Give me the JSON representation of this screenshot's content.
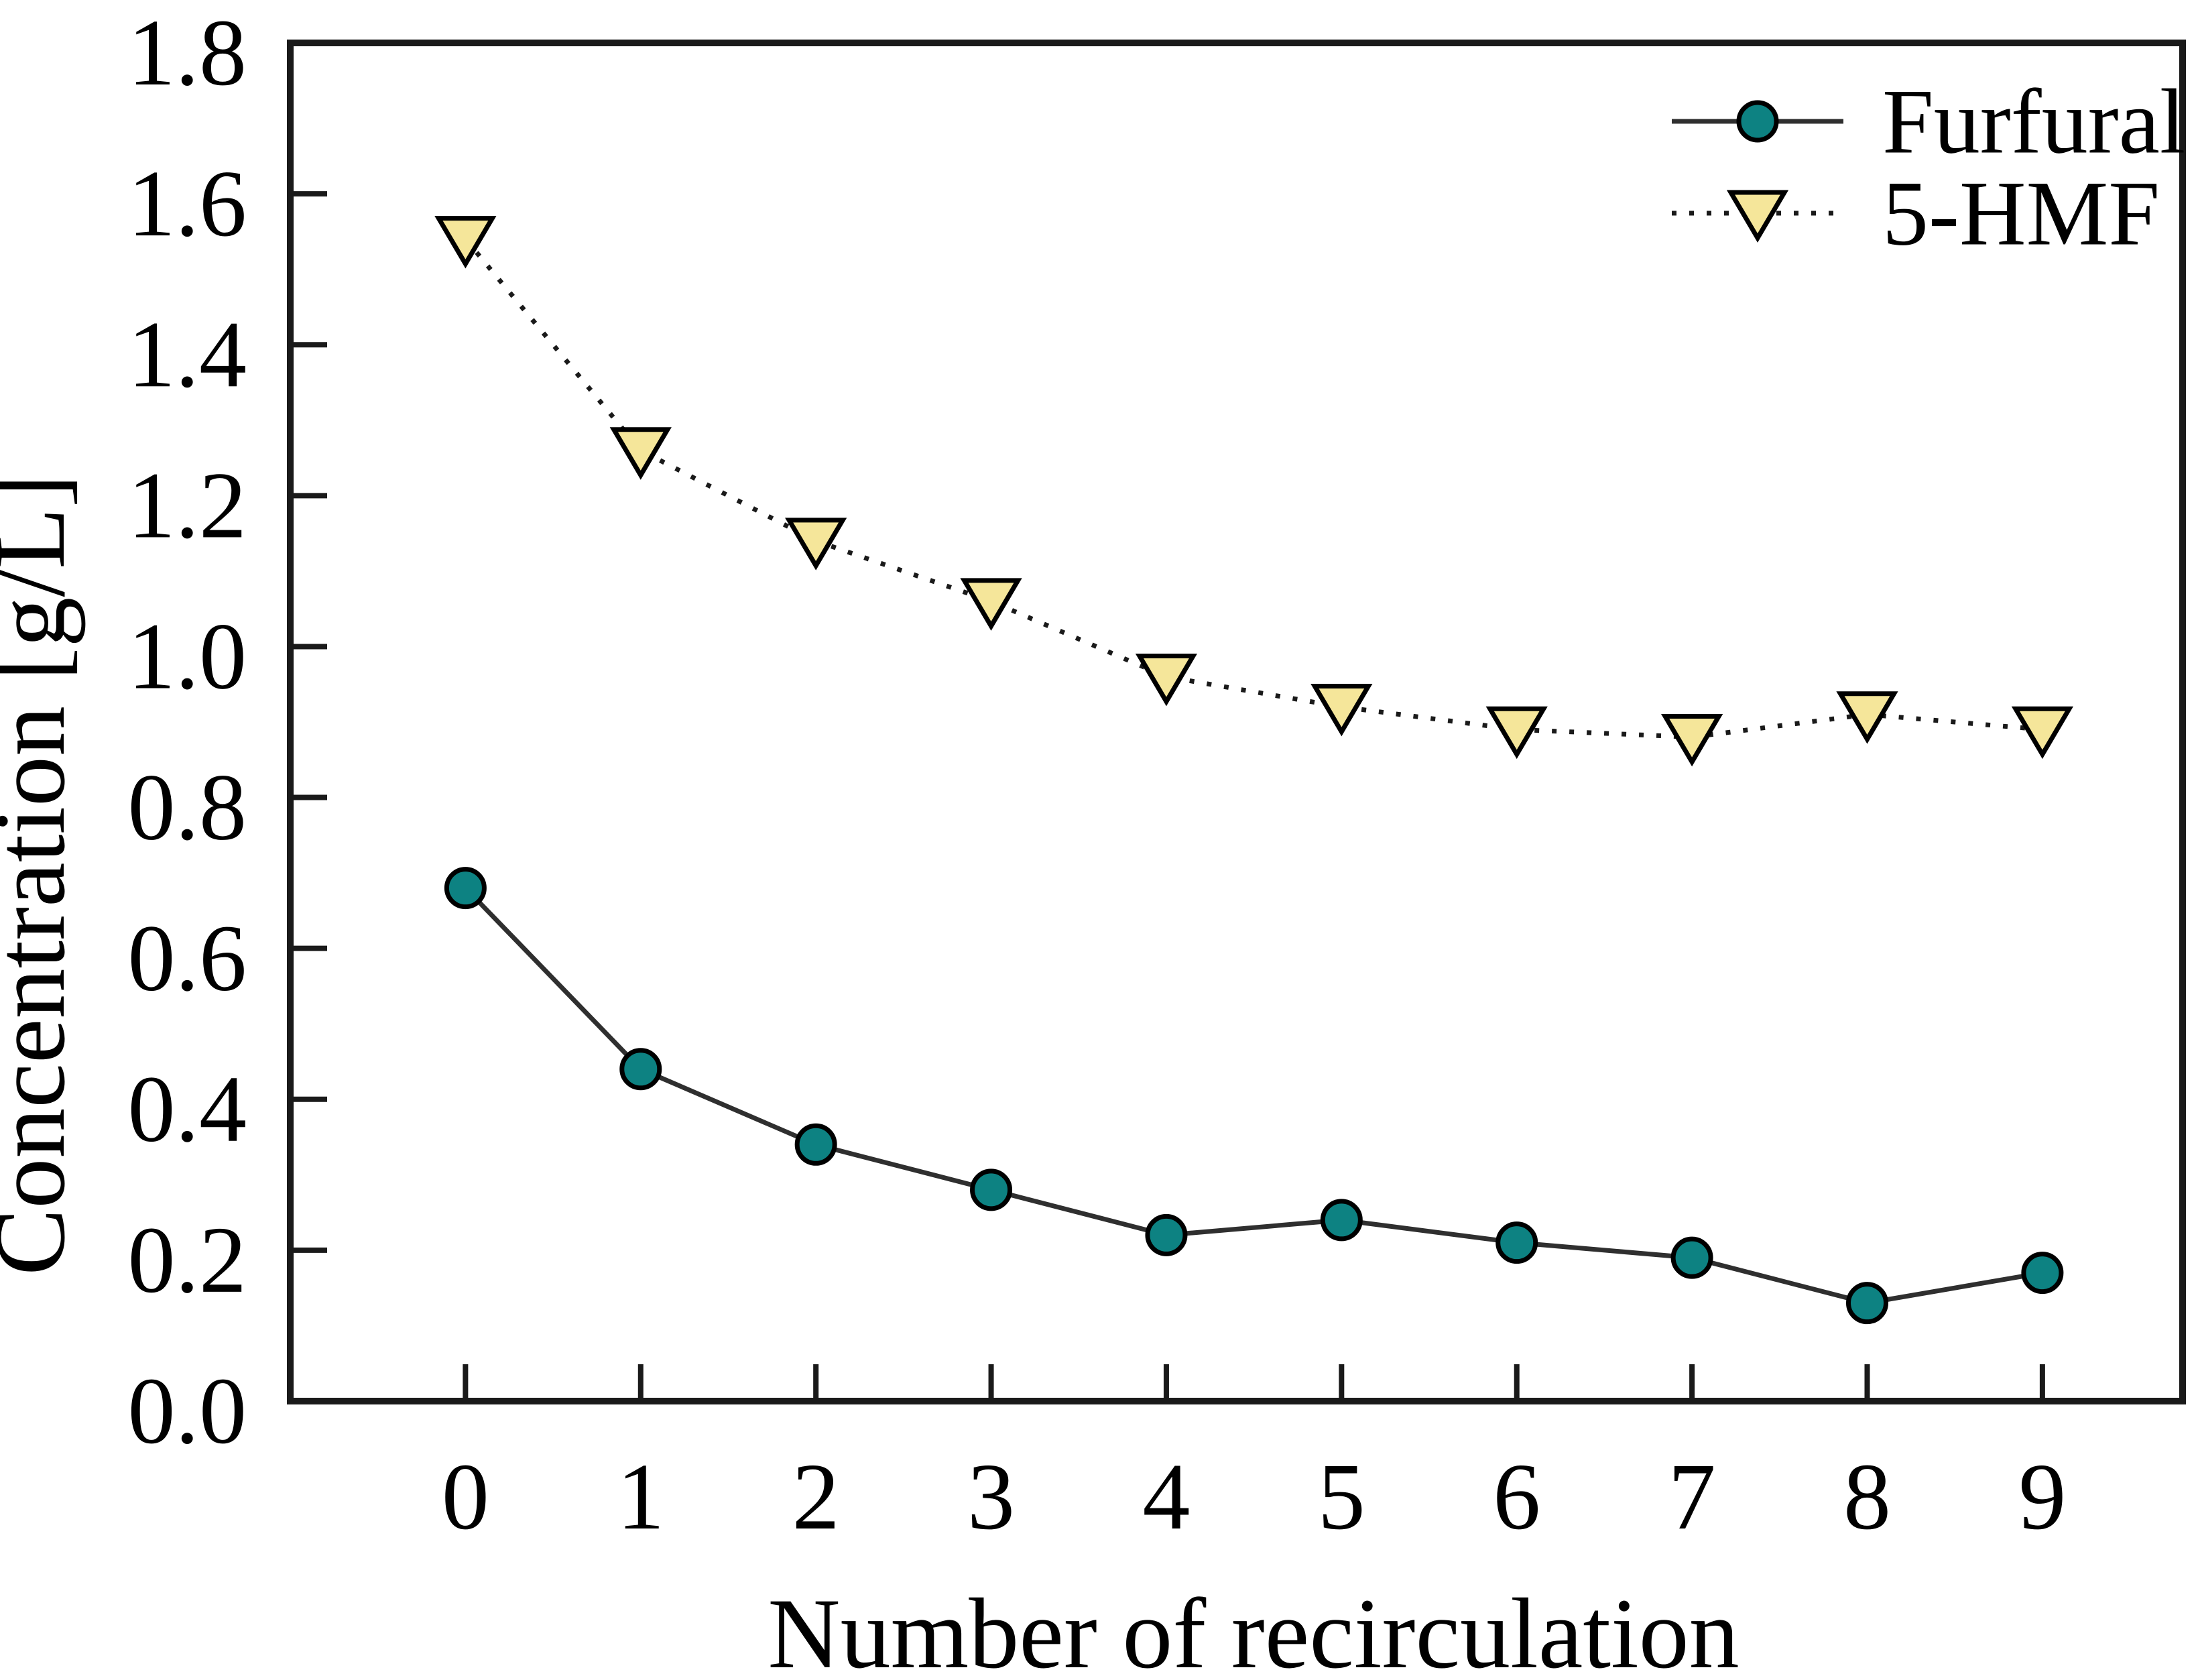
{
  "figure": {
    "background_color": "#ffffff",
    "frame_color": "#1a1a1a",
    "text_color": "#000000"
  },
  "chart_data": {
    "type": "line",
    "title": "",
    "xlabel": "Number of recirculation",
    "ylabel": "Concentration [g/L]",
    "x": [
      0,
      1,
      2,
      3,
      4,
      5,
      6,
      7,
      8,
      9
    ],
    "xticks": [
      "0",
      "1",
      "2",
      "3",
      "4",
      "5",
      "6",
      "7",
      "8",
      "9"
    ],
    "yticks": [
      "0.0",
      "0.2",
      "0.4",
      "0.6",
      "0.8",
      "1.0",
      "1.2",
      "1.4",
      "1.6",
      "1.8"
    ],
    "xlim": [
      -1,
      9.8
    ],
    "ylim": [
      0,
      1.8
    ],
    "grid": false,
    "legend_position": "top-right-inside",
    "series": [
      {
        "name": "Furfural",
        "marker": "circle",
        "marker_fill": "#0d8282",
        "marker_outline": "#000000",
        "line_style": "solid",
        "line_color": "#2f2f2f",
        "values": [
          0.68,
          0.44,
          0.34,
          0.28,
          0.22,
          0.24,
          0.21,
          0.19,
          0.13,
          0.17
        ]
      },
      {
        "name": "5-HMF",
        "marker": "triangle-down",
        "marker_fill": "#f5e69a",
        "marker_outline": "#000000",
        "line_style": "dotted",
        "line_color": "#1a1a1a",
        "values": [
          1.54,
          1.26,
          1.14,
          1.06,
          0.96,
          0.92,
          0.89,
          0.88,
          0.91,
          0.89
        ]
      }
    ]
  }
}
